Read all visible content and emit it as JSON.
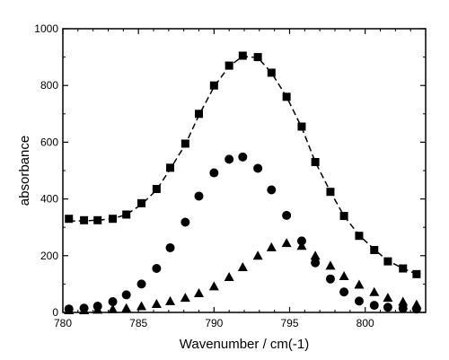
{
  "chart_data": {
    "type": "scatter",
    "title": "",
    "xlabel": "Wavenumber / cm(-1)",
    "ylabel": "absorbance",
    "xlim": [
      780,
      804
    ],
    "ylim": [
      0,
      1000
    ],
    "x_ticks": [
      780,
      785,
      790,
      795,
      800
    ],
    "y_ticks": [
      0,
      200,
      400,
      600,
      800,
      1000
    ],
    "grid": false,
    "legend": "none",
    "series": [
      {
        "marker": "square",
        "color": "#000000",
        "x": [
          780.4,
          781.4,
          782.3,
          783.3,
          784.2,
          785.2,
          786.2,
          787.1,
          788.1,
          789.0,
          790.0,
          791.0,
          791.9,
          792.9,
          793.8,
          794.8,
          795.8,
          796.7,
          797.7,
          798.6,
          799.6,
          800.6,
          801.5,
          802.5,
          803.4
        ],
        "y": [
          330,
          325,
          325,
          330,
          345,
          385,
          435,
          510,
          595,
          700,
          800,
          870,
          905,
          900,
          845,
          760,
          655,
          530,
          425,
          340,
          270,
          220,
          180,
          155,
          135
        ]
      },
      {
        "marker": "circle",
        "color": "#000000",
        "x": [
          780.4,
          781.4,
          782.3,
          783.3,
          784.2,
          785.2,
          786.2,
          787.1,
          788.1,
          789.0,
          790.0,
          791.0,
          791.9,
          792.9,
          793.8,
          794.8,
          795.8,
          796.7,
          797.7,
          798.6,
          799.6,
          800.6,
          801.5,
          802.5,
          803.4
        ],
        "y": [
          12,
          15,
          22,
          38,
          62,
          100,
          155,
          228,
          318,
          410,
          492,
          540,
          548,
          508,
          432,
          342,
          252,
          175,
          118,
          72,
          40,
          25,
          18,
          14,
          12
        ]
      },
      {
        "marker": "triangle",
        "color": "#000000",
        "x": [
          780.4,
          781.4,
          782.3,
          783.3,
          784.2,
          785.2,
          786.2,
          787.1,
          788.1,
          789.0,
          790.0,
          791.0,
          791.9,
          792.9,
          793.8,
          794.8,
          795.8,
          796.7,
          797.7,
          798.6,
          799.6,
          800.6,
          801.5,
          802.5,
          803.4
        ],
        "y": [
          8,
          8,
          10,
          12,
          15,
          22,
          30,
          40,
          52,
          68,
          92,
          125,
          160,
          200,
          230,
          245,
          235,
          200,
          165,
          128,
          98,
          72,
          52,
          38,
          28
        ]
      }
    ],
    "fit_curve": {
      "style": "dashed",
      "color": "#000000",
      "x": [
        780.4,
        781.4,
        782.3,
        783.3,
        784.2,
        785.2,
        786.2,
        787.1,
        788.1,
        789.0,
        790.0,
        791.0,
        791.9,
        792.9,
        793.8,
        794.8,
        795.8,
        796.7,
        797.7,
        798.6,
        799.6,
        800.6,
        801.5,
        802.5,
        803.4
      ],
      "y": [
        322,
        323,
        325,
        330,
        345,
        380,
        432,
        505,
        592,
        695,
        795,
        868,
        903,
        898,
        845,
        760,
        652,
        530,
        425,
        340,
        272,
        222,
        182,
        155,
        135
      ]
    }
  }
}
